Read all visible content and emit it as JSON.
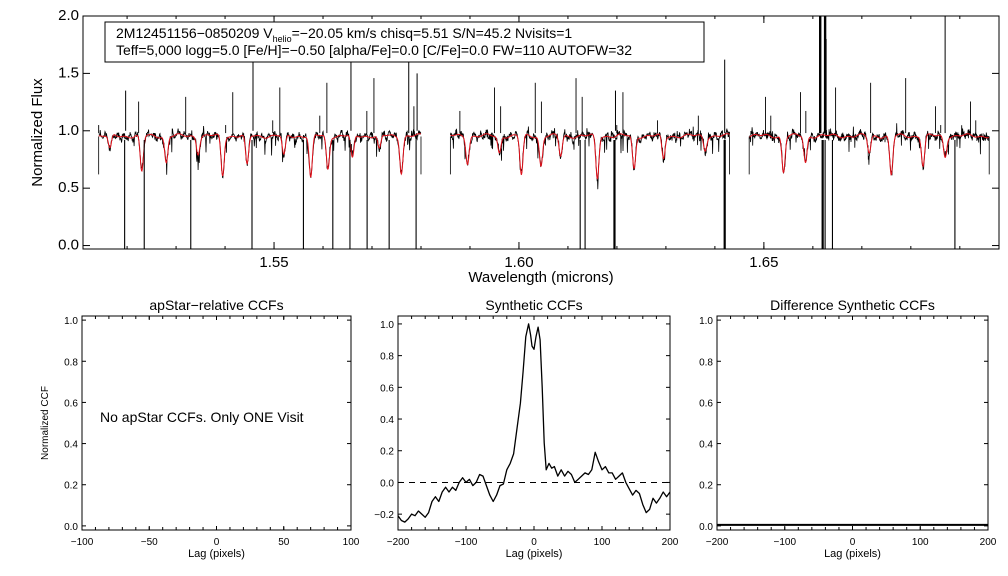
{
  "chart_data": [
    {
      "id": "spectrum",
      "type": "line",
      "title": "",
      "xlabel": "Wavelength (microns)",
      "ylabel": "Normalized Flux",
      "xlim": [
        1.511,
        1.698
      ],
      "ylim": [
        -0.03,
        2.0
      ],
      "xticks": [
        1.55,
        1.6,
        1.65
      ],
      "xtick_labels": [
        "1.55",
        "1.60",
        "1.65"
      ],
      "yticks": [
        0.0,
        0.5,
        1.0,
        1.5,
        2.0
      ],
      "ytick_labels": [
        "0.0",
        "0.5",
        "1.0",
        "1.5",
        "2.0"
      ],
      "chips": [
        [
          1.5142,
          1.58
        ],
        [
          1.586,
          1.643
        ],
        [
          1.647,
          1.696
        ]
      ],
      "series": [
        {
          "name": "observed",
          "color": "#000000"
        },
        {
          "name": "model",
          "color": "#e0101a"
        }
      ],
      "sky_lines": [
        1.5195,
        1.5235,
        1.533,
        1.5455,
        1.556,
        1.562,
        1.5655,
        1.569,
        1.5735,
        1.579,
        1.6125,
        1.6135,
        1.6195,
        1.642,
        1.662,
        1.6625,
        1.664,
        1.689
      ],
      "absorption_lines": [
        1.5165,
        1.523,
        1.528,
        1.5345,
        1.5395,
        1.5445,
        1.552,
        1.5575,
        1.561,
        1.566,
        1.5715,
        1.576,
        1.5895,
        1.596,
        1.6005,
        1.6045,
        1.6085,
        1.616,
        1.6235,
        1.6295,
        1.638,
        1.654,
        1.6585,
        1.6715,
        1.676,
        1.6825,
        1.687
      ],
      "annotation": {
        "line1_prefix": "2M12451156−0850209  V",
        "line1_sub": "helio",
        "line1_rest": "=−20.05 km/s  chisq=5.51  S/N=45.2  Nvisits=1",
        "line2": "Teff=5,000 logg=5.0 [Fe/H]=−0.50 [alpha/Fe]=0.0 [C/Fe]=0.0 FW=110 AUTOFW=32"
      }
    },
    {
      "id": "apstar_ccf",
      "type": "line",
      "title": "apStar−relative CCFs",
      "xlabel": "Lag (pixels)",
      "ylabel": "Normalized CCF",
      "xlim": [
        -100,
        100
      ],
      "ylim": [
        -0.02,
        1.02
      ],
      "xticks": [
        -100,
        -50,
        0,
        50,
        100
      ],
      "xtick_labels": [
        "−100",
        "−50",
        "0",
        "50",
        "100"
      ],
      "yticks": [
        0.0,
        0.2,
        0.4,
        0.6,
        0.8,
        1.0
      ],
      "ytick_labels": [
        "0.0",
        "0.2",
        "0.4",
        "0.6",
        "0.8",
        "1.0"
      ],
      "note": "No apStar CCFs.  Only ONE Visit",
      "series": []
    },
    {
      "id": "synthetic_ccf",
      "type": "line",
      "title": "Synthetic CCFs",
      "xlabel": "Lag (pixels)",
      "ylabel": "",
      "xlim": [
        -200,
        200
      ],
      "ylim": [
        -0.3,
        1.05
      ],
      "xticks": [
        -200,
        -100,
        0,
        100,
        200
      ],
      "xtick_labels": [
        "−200",
        "−100",
        "0",
        "100",
        "200"
      ],
      "yticks": [
        -0.2,
        0.0,
        0.2,
        0.4,
        0.6,
        0.8,
        1.0
      ],
      "ytick_labels": [
        "−0.2",
        "0.0",
        "0.2",
        "0.4",
        "0.6",
        "0.8",
        "1.0"
      ],
      "zero_line": 0.0,
      "series": [
        {
          "name": "ccf",
          "x": [
            -200,
            -195,
            -190,
            -185,
            -180,
            -175,
            -170,
            -165,
            -160,
            -155,
            -150,
            -145,
            -140,
            -135,
            -130,
            -125,
            -120,
            -115,
            -110,
            -105,
            -100,
            -95,
            -90,
            -85,
            -80,
            -75,
            -70,
            -65,
            -60,
            -55,
            -50,
            -45,
            -40,
            -35,
            -30,
            -25,
            -20,
            -16,
            -12,
            -8,
            -5,
            -3,
            0,
            3,
            6,
            9,
            12,
            15,
            18,
            22,
            26,
            30,
            35,
            40,
            45,
            50,
            55,
            60,
            65,
            70,
            75,
            80,
            85,
            90,
            95,
            100,
            105,
            110,
            115,
            120,
            125,
            130,
            135,
            140,
            145,
            150,
            155,
            160,
            165,
            170,
            175,
            180,
            185,
            190,
            195,
            200
          ],
          "y": [
            -0.21,
            -0.24,
            -0.25,
            -0.23,
            -0.2,
            -0.21,
            -0.18,
            -0.2,
            -0.22,
            -0.19,
            -0.12,
            -0.09,
            -0.12,
            -0.06,
            -0.03,
            -0.06,
            -0.03,
            -0.05,
            0.0,
            0.03,
            0.0,
            0.02,
            -0.02,
            0.0,
            0.05,
            0.04,
            -0.02,
            -0.08,
            -0.12,
            -0.08,
            -0.02,
            -0.01,
            0.08,
            0.12,
            0.18,
            0.34,
            0.5,
            0.7,
            0.92,
            1.0,
            0.93,
            0.86,
            0.84,
            0.92,
            0.98,
            0.9,
            0.6,
            0.25,
            0.08,
            0.12,
            0.09,
            0.1,
            0.04,
            0.08,
            0.04,
            0.07,
            0.05,
            0.0,
            0.02,
            0.04,
            0.06,
            0.05,
            0.08,
            0.19,
            0.13,
            0.08,
            0.1,
            0.06,
            0.06,
            0.02,
            0.04,
            0.06,
            0.0,
            -0.04,
            -0.08,
            -0.05,
            -0.07,
            -0.14,
            -0.19,
            -0.17,
            -0.1,
            -0.13,
            -0.1,
            -0.06,
            -0.09,
            -0.06
          ],
          "color": "#000000"
        }
      ]
    },
    {
      "id": "difference_ccf",
      "type": "line",
      "title": "Difference Synthetic CCFs",
      "xlabel": "Lag (pixels)",
      "ylabel": "",
      "xlim": [
        -200,
        200
      ],
      "ylim": [
        -0.02,
        1.02
      ],
      "xticks": [
        -200,
        -100,
        0,
        100,
        200
      ],
      "xtick_labels": [
        "−200",
        "−100",
        "0",
        "100",
        "200"
      ],
      "yticks": [
        0.0,
        0.2,
        0.4,
        0.6,
        0.8,
        1.0
      ],
      "ytick_labels": [
        "0.0",
        "0.2",
        "0.4",
        "0.6",
        "0.8",
        "1.0"
      ],
      "series": [
        {
          "name": "difference",
          "x": [
            -200,
            200
          ],
          "y": [
            0.0,
            0.0
          ],
          "color": "#000000"
        }
      ]
    }
  ]
}
